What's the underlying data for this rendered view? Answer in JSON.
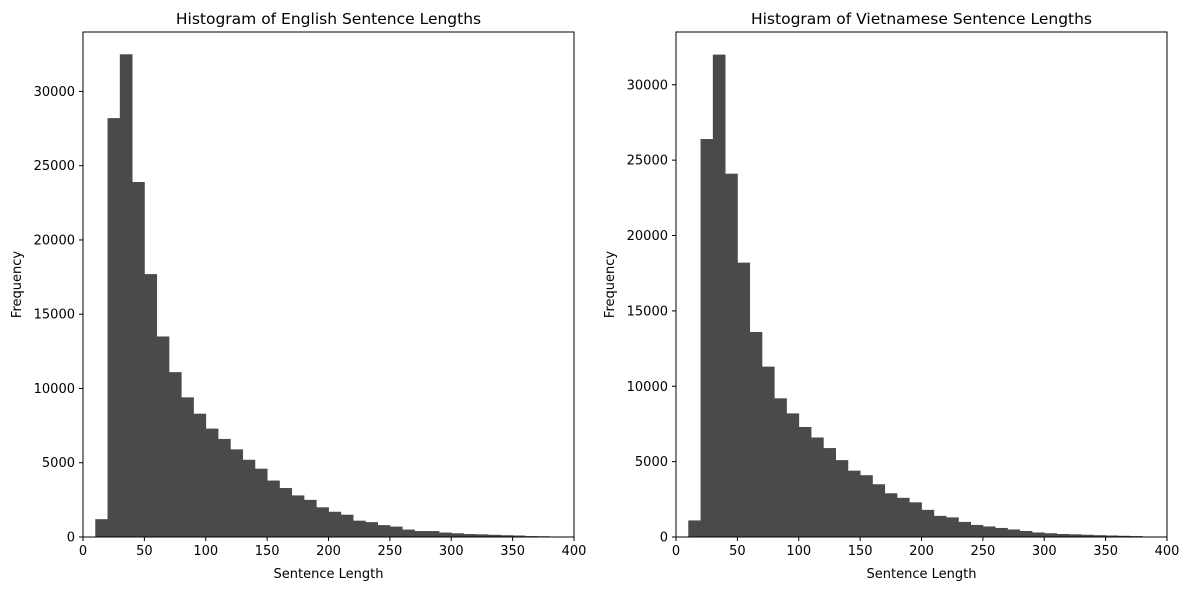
{
  "colors": {
    "bar": "#4a4a4a",
    "axis": "#000000",
    "background": "#ffffff"
  },
  "chart_data": [
    {
      "type": "bar",
      "title": "Histogram of English Sentence Lengths",
      "xlabel": "Sentence Length",
      "ylabel": "Frequency",
      "xlim": [
        0,
        400
      ],
      "ylim": [
        0,
        34000
      ],
      "xticks": [
        0,
        50,
        100,
        150,
        200,
        250,
        300,
        350,
        400
      ],
      "yticks": [
        0,
        5000,
        10000,
        15000,
        20000,
        25000,
        30000
      ],
      "grid": false,
      "bin_width": 10,
      "bin_starts": [
        0,
        10,
        20,
        30,
        40,
        50,
        60,
        70,
        80,
        90,
        100,
        110,
        120,
        130,
        140,
        150,
        160,
        170,
        180,
        190,
        200,
        210,
        220,
        230,
        240,
        250,
        260,
        270,
        280,
        290,
        300,
        310,
        320,
        330,
        340,
        350,
        360,
        370,
        380,
        390
      ],
      "values": [
        0,
        1200,
        28200,
        32500,
        23900,
        17700,
        13500,
        11100,
        9400,
        8300,
        7300,
        6600,
        5900,
        5200,
        4600,
        3800,
        3300,
        2800,
        2500,
        2000,
        1700,
        1500,
        1100,
        1000,
        800,
        700,
        500,
        400,
        400,
        300,
        250,
        200,
        180,
        150,
        120,
        100,
        60,
        50,
        30,
        20
      ]
    },
    {
      "type": "bar",
      "title": "Histogram of Vietnamese Sentence Lengths",
      "xlabel": "Sentence Length",
      "ylabel": "Frequency",
      "xlim": [
        0,
        400
      ],
      "ylim": [
        0,
        33500
      ],
      "xticks": [
        0,
        50,
        100,
        150,
        200,
        250,
        300,
        350,
        400
      ],
      "yticks": [
        0,
        5000,
        10000,
        15000,
        20000,
        25000,
        30000
      ],
      "grid": false,
      "bin_width": 10,
      "bin_starts": [
        0,
        10,
        20,
        30,
        40,
        50,
        60,
        70,
        80,
        90,
        100,
        110,
        120,
        130,
        140,
        150,
        160,
        170,
        180,
        190,
        200,
        210,
        220,
        230,
        240,
        250,
        260,
        270,
        280,
        290,
        300,
        310,
        320,
        330,
        340,
        350,
        360,
        370,
        380,
        390
      ],
      "values": [
        0,
        1100,
        26400,
        32000,
        24100,
        18200,
        13600,
        11300,
        9200,
        8200,
        7300,
        6600,
        5900,
        5100,
        4400,
        4100,
        3500,
        2900,
        2600,
        2300,
        1800,
        1400,
        1300,
        1000,
        800,
        700,
        600,
        500,
        400,
        300,
        250,
        200,
        180,
        150,
        120,
        100,
        80,
        60,
        30,
        20
      ]
    }
  ]
}
